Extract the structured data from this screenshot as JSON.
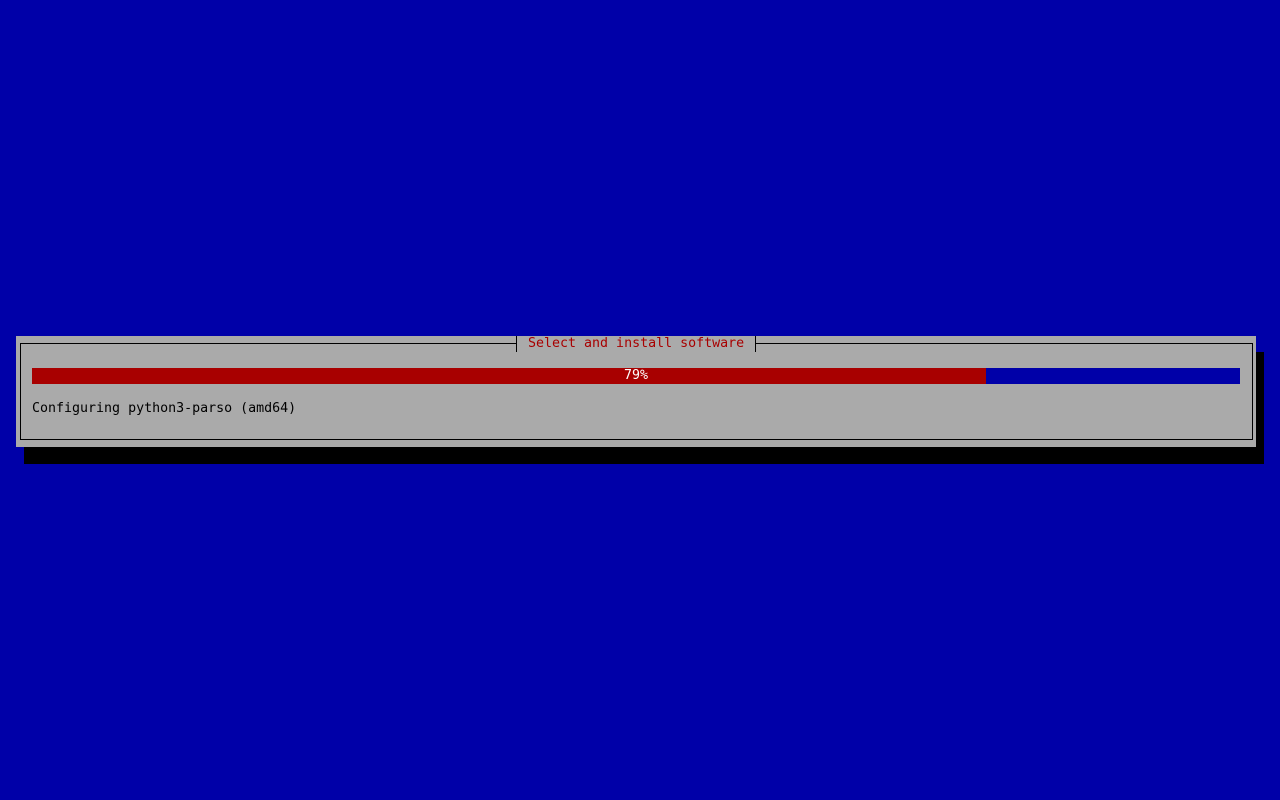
{
  "colors": {
    "background": "#0000a8",
    "dialog": "#aaaaaa",
    "title": "#a80000",
    "progress_fill": "#a80000",
    "progress_empty": "#0000a8"
  },
  "dialog": {
    "title": "Select and install software",
    "progress": {
      "percent": 79,
      "label": "79%"
    },
    "status": "Configuring python3-parso (amd64)"
  }
}
